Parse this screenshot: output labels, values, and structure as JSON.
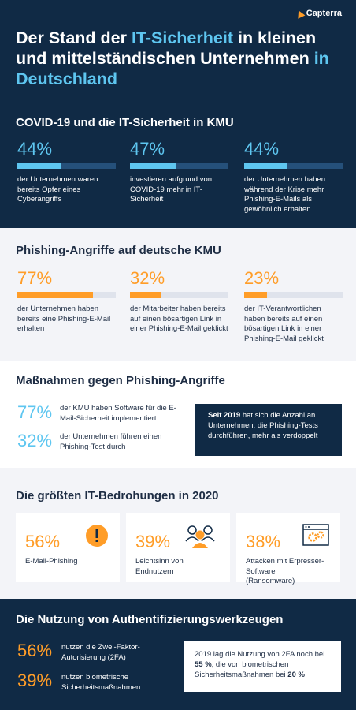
{
  "logo": {
    "text": "Capterra"
  },
  "header": {
    "title_parts": [
      "Der Stand der ",
      "IT-Sicherheit",
      " in kleinen und mittelständischen Unternehmen ",
      "in Deutschland"
    ]
  },
  "covid": {
    "title": "COVID-19 und die IT-Sicherheit in KMU",
    "stats": [
      {
        "value": 44,
        "pct": "44%",
        "text": "der Unternehmen waren bereits Opfer eines Cyberangriffs"
      },
      {
        "value": 47,
        "pct": "47%",
        "text": "investieren aufgrund von COVID-19 mehr in IT-Sicherheit"
      },
      {
        "value": 44,
        "pct": "44%",
        "text": "der Unternehmen haben während der Krise mehr Phishing-E-Mails als gewöhnlich erhalten"
      }
    ]
  },
  "phishing": {
    "title": "Phishing-Angriffe auf deutsche KMU",
    "stats": [
      {
        "value": 77,
        "pct": "77%",
        "text": "der Unternehmen haben bereits eine Phishing-E-Mail erhalten"
      },
      {
        "value": 32,
        "pct": "32%",
        "text": "der Mitarbeiter haben bereits auf einen bösartigen Link in einer Phishing-E-Mail geklickt"
      },
      {
        "value": 23,
        "pct": "23%",
        "text": "der IT-Verantwortlichen haben bereits auf einen bösartigen Link in einer Phishing-E-Mail geklickt"
      }
    ]
  },
  "measures": {
    "title": "Maßnahmen gegen Phishing-Angriffe",
    "items": [
      {
        "pct": "77%",
        "text": "der KMU haben Software für die E-Mail-Sicherheit implementiert"
      },
      {
        "pct": "32%",
        "text": "der Unternehmen führen einen Phishing-Test durch"
      }
    ],
    "box_bold": "Seit 2019",
    "box_text": " hat sich die Anzahl an Unternehmen, die Phishing-Tests durchführen, mehr als verdoppelt"
  },
  "threats": {
    "title": "Die größten IT-Bedrohungen in 2020",
    "cards": [
      {
        "pct": "56%",
        "text": "E-Mail-Phishing",
        "icon": "warning-icon"
      },
      {
        "pct": "39%",
        "text": "Leichtsinn von Endnutzern",
        "icon": "users-icon"
      },
      {
        "pct": "38%",
        "text": "Attacken mit Erpresser-Software (Ransomware)",
        "icon": "browser-gears-icon"
      }
    ]
  },
  "auth": {
    "title": "Die Nutzung von Authentifizierungswerkzeugen",
    "items": [
      {
        "pct": "56%",
        "text": "nutzen die Zwei-Faktor-Autorisierung (2FA)"
      },
      {
        "pct": "39%",
        "text": "nutzen biometrische Sicherheitsmaßnahmen"
      }
    ],
    "box_parts": [
      "2019 lag die Nutzung von 2FA noch bei ",
      "55 %",
      ", die von biometrischen Sicherheitsmaßnahmen bei ",
      "20 %"
    ]
  },
  "colors": {
    "navy": "#102a45",
    "blue": "#5ec6f0",
    "orange": "#ff9d28",
    "bar_track_dark": "#25507a",
    "bar_track_light": "#dfe3ec"
  }
}
